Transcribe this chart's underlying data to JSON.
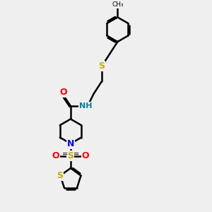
{
  "background_color": "#efefef",
  "line_color": "#000000",
  "bond_width": 1.8,
  "atom_colors": {
    "O": "#ff0000",
    "N_amide": "#0080a0",
    "N_pip": "#0000ff",
    "S_sulfonyl": "#ccaa00",
    "S_thioether": "#ccaa00",
    "S_thiophene": "#ccaa00"
  },
  "figsize": [
    3.0,
    3.0
  ],
  "dpi": 100,
  "xlim": [
    0,
    10
  ],
  "ylim": [
    0,
    14
  ]
}
